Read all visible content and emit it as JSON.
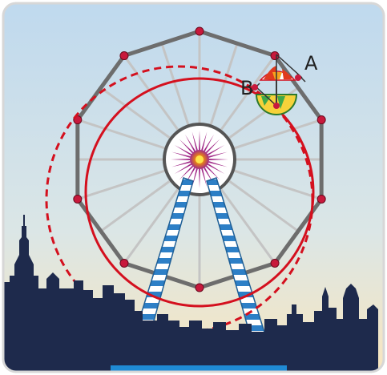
{
  "diagram": {
    "point_labels": {
      "a": "A",
      "b": "B"
    },
    "colors": {
      "sky_top": "#bcd8ec",
      "sky_bottom": "#f7e7c3",
      "frame": "#6a6a6a",
      "spoke": "#c2c2c2",
      "joint": "#c8193c",
      "circle": "#d4101e",
      "silhouette": "#1e2a4c",
      "tower_stripe": "#2d7fc6",
      "hub_flower": "#a12a88",
      "base": "#1f8ad4"
    },
    "wheel": {
      "gondolas": 10,
      "spokes": 20
    }
  }
}
